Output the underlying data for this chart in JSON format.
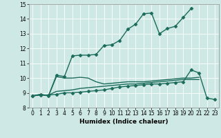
{
  "title": "",
  "xlabel": "Humidex (Indice chaleur)",
  "ylabel": "",
  "bg_color": "#cde8e5",
  "line_color": "#1a6b5a",
  "xlim": [
    -0.5,
    23.5
  ],
  "ylim": [
    8,
    15
  ],
  "xticks": [
    0,
    1,
    2,
    3,
    4,
    5,
    6,
    7,
    8,
    9,
    10,
    11,
    12,
    13,
    14,
    15,
    16,
    17,
    18,
    19,
    20,
    21,
    22,
    23
  ],
  "yticks": [
    8,
    9,
    10,
    11,
    12,
    13,
    14,
    15
  ],
  "series": [
    {
      "x": [
        0,
        1,
        2,
        3,
        4,
        5,
        6,
        7,
        8,
        9,
        10,
        11,
        12,
        13,
        14,
        15,
        16,
        17,
        18,
        19,
        20
      ],
      "y": [
        8.8,
        8.9,
        8.8,
        10.2,
        10.1,
        11.5,
        11.55,
        11.55,
        11.6,
        12.2,
        12.25,
        12.55,
        13.3,
        13.65,
        14.35,
        14.4,
        13.0,
        13.35,
        13.5,
        14.1,
        14.7
      ],
      "marker": "D",
      "markersize": 2.5,
      "linewidth": 1.0
    },
    {
      "x": [
        0,
        1,
        2,
        3,
        4,
        5,
        6,
        7,
        8,
        9,
        10,
        11,
        12,
        13,
        14,
        15,
        16,
        17,
        18,
        19,
        20,
        21,
        22,
        23
      ],
      "y": [
        8.8,
        8.9,
        8.8,
        10.1,
        10.0,
        10.0,
        10.05,
        10.0,
        9.75,
        9.6,
        9.65,
        9.7,
        9.75,
        9.75,
        9.75,
        9.8,
        9.85,
        9.9,
        9.95,
        10.0,
        10.0,
        10.05,
        null,
        null
      ],
      "marker": null,
      "markersize": 0,
      "linewidth": 1.0
    },
    {
      "x": [
        0,
        1,
        2,
        3,
        4,
        5,
        6,
        7,
        8,
        9,
        10,
        11,
        12,
        13,
        14,
        15,
        16,
        17,
        18,
        19,
        20,
        21,
        22,
        23
      ],
      "y": [
        8.8,
        8.85,
        8.85,
        9.1,
        9.15,
        9.2,
        9.3,
        9.35,
        9.4,
        9.45,
        9.5,
        9.55,
        9.6,
        9.6,
        9.65,
        9.7,
        9.75,
        9.8,
        9.85,
        9.9,
        9.9,
        9.9,
        null,
        null
      ],
      "marker": null,
      "markersize": 0,
      "linewidth": 1.0
    },
    {
      "x": [
        0,
        1,
        2,
        3,
        4,
        5,
        6,
        7,
        8,
        9,
        10,
        11,
        12,
        13,
        14,
        15,
        16,
        17,
        18,
        19,
        20,
        21,
        22,
        23
      ],
      "y": [
        8.8,
        8.85,
        8.85,
        8.9,
        9.0,
        9.0,
        9.05,
        9.1,
        9.15,
        9.2,
        9.3,
        9.4,
        9.45,
        9.5,
        9.55,
        9.6,
        9.6,
        9.65,
        9.7,
        9.75,
        10.55,
        10.35,
        8.65,
        8.55
      ],
      "marker": "D",
      "markersize": 2.5,
      "linewidth": 1.0
    }
  ]
}
